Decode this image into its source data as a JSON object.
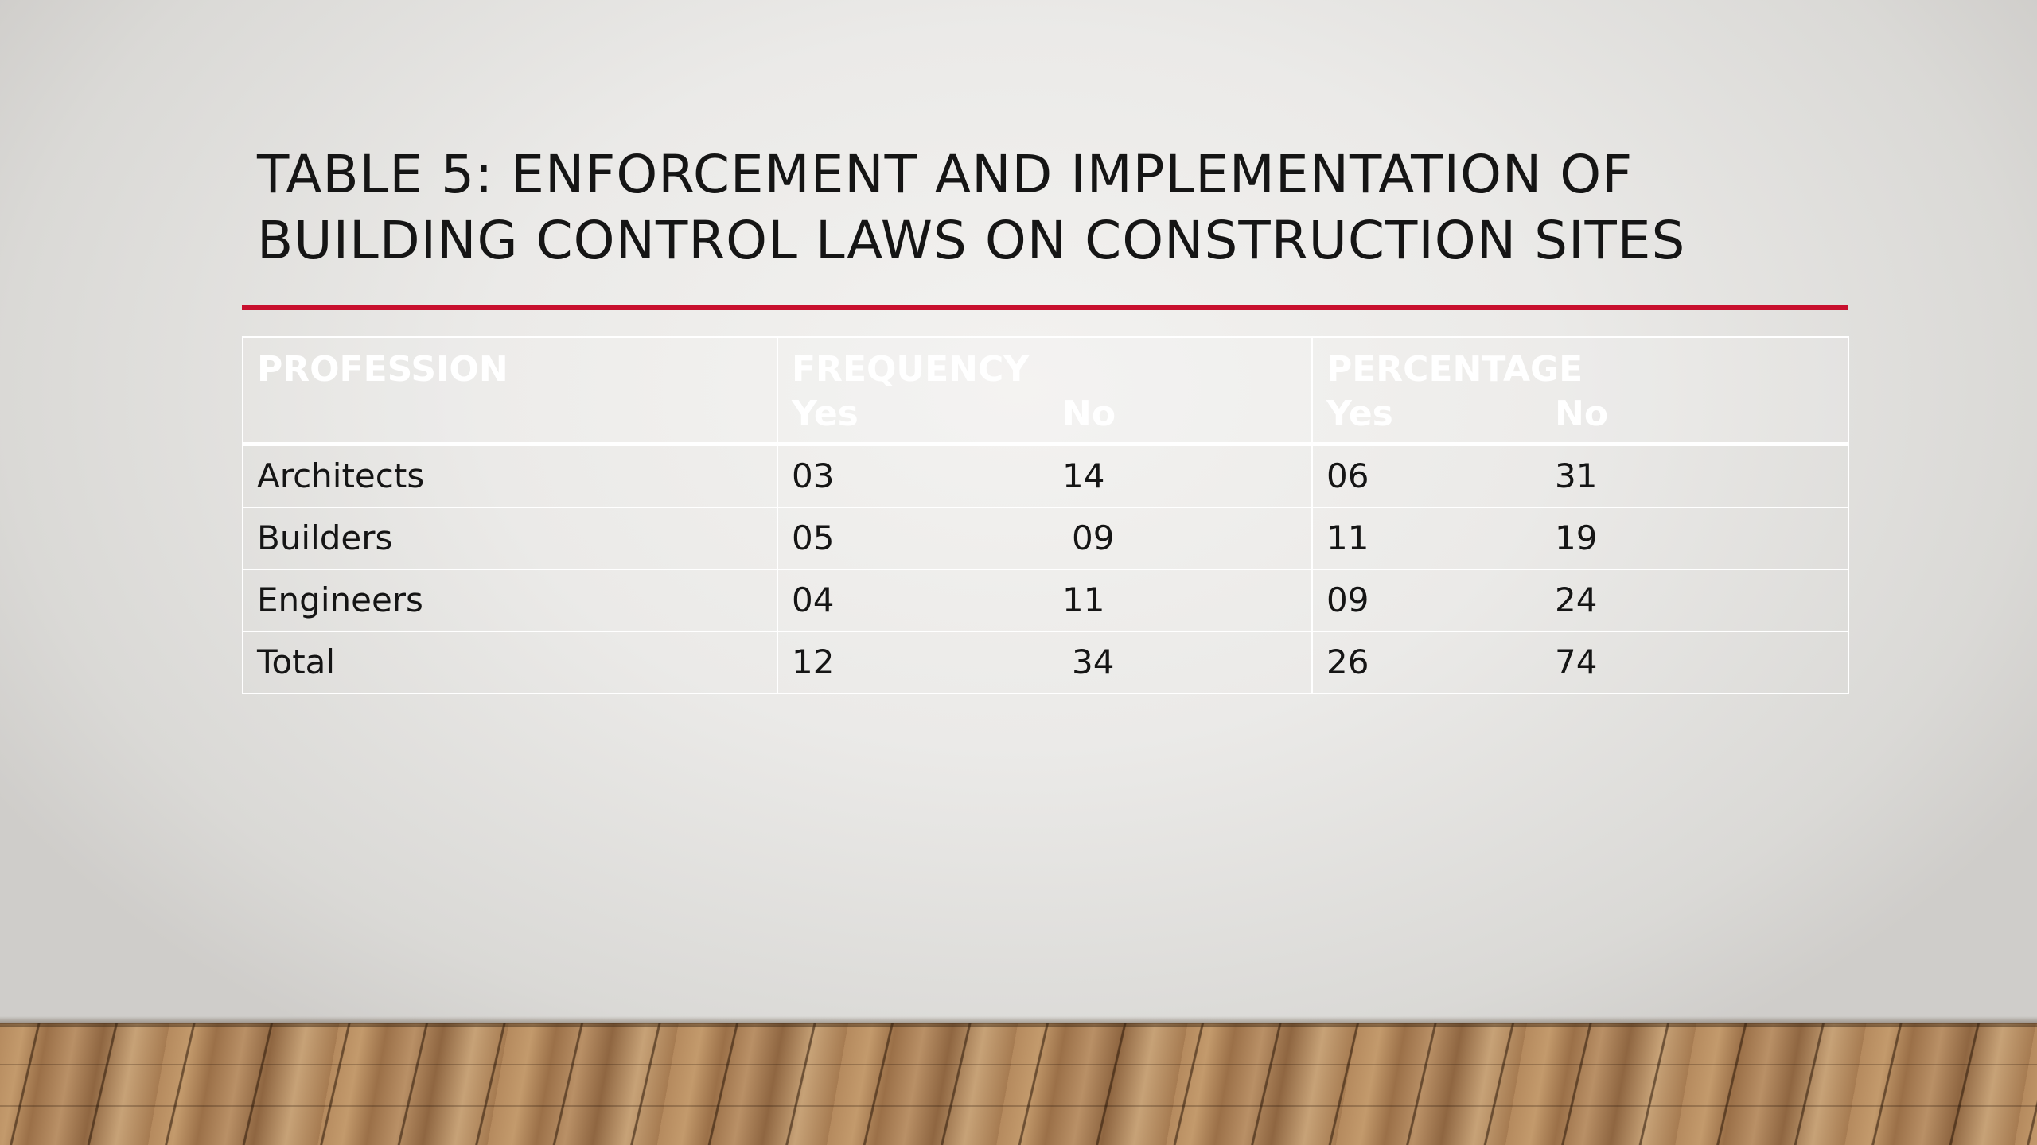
{
  "slide": {
    "title_line1": "TABLE 5: ENFORCEMENT AND IMPLEMENTATION OF",
    "title_line2": "BUILDING CONTROL LAWS ON CONSTRUCTION SITES",
    "accent_color": "#c8102e"
  },
  "table": {
    "headers": {
      "profession": "PROFESSION",
      "frequency": "FREQUENCY",
      "percentage": "PERCENTAGE",
      "freq_yes": "Yes",
      "freq_no": "No",
      "pct_yes": "Yes",
      "pct_no": "No"
    },
    "rows": [
      {
        "profession": "Architects",
        "freq_yes": "03",
        "freq_no": "14",
        "pct_yes": "06",
        "pct_no": "31"
      },
      {
        "profession": "Builders",
        "freq_yes": "05",
        "freq_no": "09",
        "pct_yes": "11",
        "pct_no": "19"
      },
      {
        "profession": "Engineers",
        "freq_yes": "04",
        "freq_no": "11",
        "pct_yes": "09",
        "pct_no": "24"
      },
      {
        "profession": "Total",
        "freq_yes": "12",
        "freq_no": "34",
        "pct_yes": "26",
        "pct_no": "74"
      }
    ]
  }
}
